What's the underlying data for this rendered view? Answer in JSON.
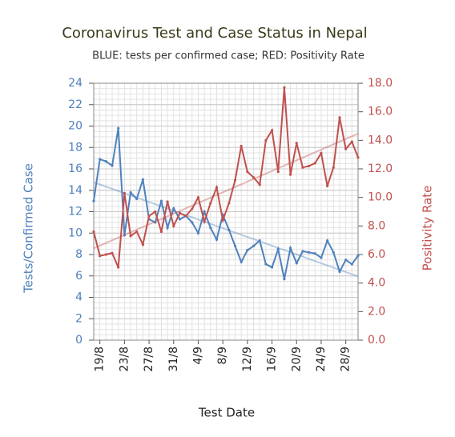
{
  "chart_data": {
    "type": "line",
    "title": "Coronavirus Test and Case Status in Nepal",
    "subtitle": "BLUE: tests per confirmed case; RED: Positivity Rate",
    "x_label": "Test Date",
    "y_label": "Tests/Confirmed Case",
    "y2_label": "Positivity Rate",
    "categories": [
      null,
      "19/8",
      null,
      null,
      null,
      "23/8",
      null,
      null,
      null,
      "27/8",
      null,
      null,
      null,
      "31/8",
      null,
      null,
      null,
      "4/9",
      null,
      null,
      null,
      "8/9",
      null,
      null,
      null,
      "12/9",
      null,
      null,
      null,
      "16/9",
      null,
      null,
      null,
      "20/9",
      null,
      null,
      null,
      "24/9",
      null,
      null,
      null,
      "28/9",
      null,
      null
    ],
    "series": [
      {
        "color": "#4f81bd",
        "values": [
          13.0,
          16.9,
          16.7,
          16.3,
          19.8,
          9.8,
          13.8,
          13.2,
          15.0,
          11.3,
          11.0,
          13.0,
          10.5,
          12.3,
          11.3,
          11.6,
          11.0,
          10.0,
          12.0,
          10.5,
          9.4,
          11.7,
          10.3,
          8.8,
          7.3,
          8.4,
          8.8,
          9.3,
          7.1,
          6.8,
          8.5,
          5.7,
          8.6,
          7.2,
          8.3,
          8.2,
          8.1,
          7.7,
          9.3,
          8.2,
          6.4,
          7.5,
          7.1,
          7.9
        ]
      },
      {
        "color": "#c0504d",
        "axis": "y2",
        "values": [
          7.6,
          5.9,
          6.0,
          6.1,
          5.1,
          10.3,
          7.3,
          7.6,
          6.7,
          8.7,
          9.0,
          7.6,
          9.7,
          8.0,
          8.9,
          8.7,
          9.2,
          10.0,
          8.3,
          9.6,
          10.7,
          8.4,
          9.6,
          11.2,
          13.6,
          11.8,
          11.4,
          10.9,
          14.0,
          14.7,
          11.8,
          17.7,
          11.6,
          13.8,
          12.1,
          12.2,
          12.4,
          13.1,
          10.8,
          12.1,
          15.6,
          13.4,
          13.9,
          12.8
        ]
      }
    ],
    "ylim": [
      0,
      24
    ],
    "yticks": [
      0,
      2,
      4,
      6,
      8,
      10,
      12,
      14,
      16,
      18,
      20,
      22,
      24
    ],
    "y2lim": [
      0,
      18
    ],
    "y2ticks": [
      {
        "value": 0,
        "label": "0.0"
      },
      {
        "value": 2,
        "label": "2.0"
      },
      {
        "value": 4,
        "label": "4.0"
      },
      {
        "value": 6,
        "label": "6.0"
      },
      {
        "value": 8,
        "label": "8.0"
      },
      {
        "value": 10,
        "label": "10.0"
      },
      {
        "value": 12,
        "label": "12.0"
      },
      {
        "value": 14,
        "label": "14.0"
      },
      {
        "value": 16,
        "label": "16.0"
      },
      {
        "value": 18,
        "label": "18.0"
      }
    ],
    "grid": true
  }
}
